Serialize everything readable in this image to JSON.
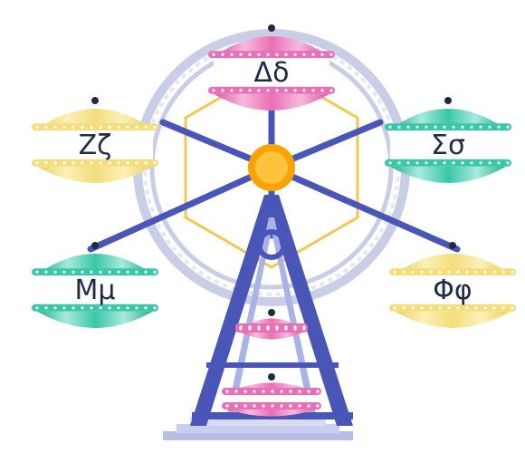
{
  "gondolas": [
    {
      "label": "Δδ",
      "color": "pink"
    },
    {
      "label": "Ζζ",
      "color": "yellow"
    },
    {
      "label": "Σσ",
      "color": "teal"
    },
    {
      "label": "Μμ",
      "color": "teal"
    },
    {
      "label": "Φφ",
      "color": "yellow"
    },
    {
      "label": "",
      "color": "pink"
    },
    {
      "label": "",
      "color": "pink"
    }
  ],
  "colors": {
    "pink": "#e870b6",
    "pink_light": "#f7b9de",
    "yellow": "#f3de7b",
    "yellow_light": "#fbf0b8",
    "teal": "#39c7a8",
    "teal_light": "#a8eadb",
    "frame": "#4a55b8",
    "frame_light": "#aab3e6",
    "hub": "#f7a400",
    "rim": "#c9cde6"
  }
}
